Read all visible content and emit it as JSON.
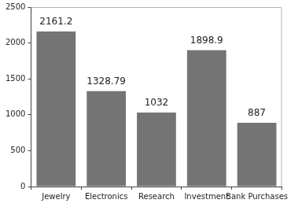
{
  "chart_data": {
    "type": "bar",
    "categories": [
      "Jewelry",
      "Electronics",
      "Research",
      "Investment",
      "Bank Purchases"
    ],
    "values": [
      2161.2,
      1328.79,
      1032,
      1898.9,
      887
    ],
    "color": "#747474",
    "ylim": [
      0,
      2500
    ],
    "yticks": [
      0,
      500,
      1000,
      1500,
      2000,
      2500
    ],
    "grid": false,
    "data_labels": true
  }
}
